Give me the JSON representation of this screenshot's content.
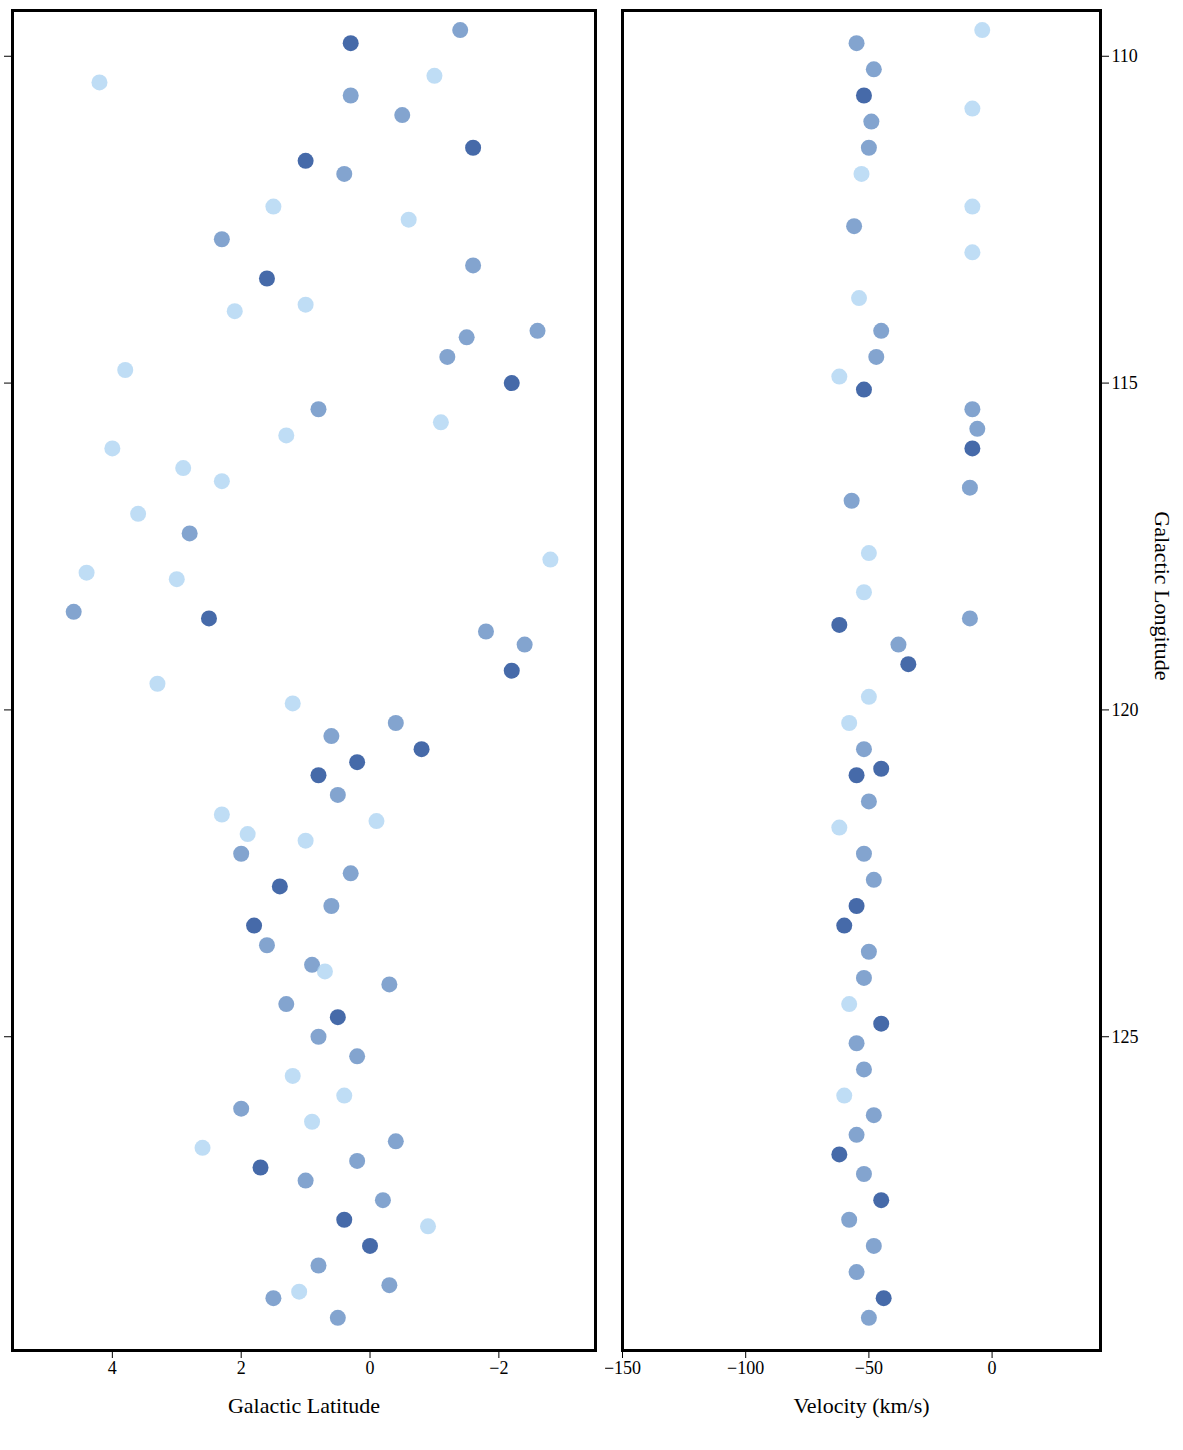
{
  "chart_data": [
    {
      "type": "heatmap",
      "xlabel": "Galactic Latitude",
      "xlim": [
        5.55,
        -3.5
      ],
      "xticks": [
        4,
        2,
        0,
        -2
      ],
      "ylim": [
        129.8,
        109.3
      ],
      "yticks": [
        110,
        115,
        120,
        125
      ],
      "tick_labels": "x",
      "x": [
        0.5,
        1.5,
        -0.3,
        0.8,
        0.0,
        0.4,
        -0.2,
        1.0,
        1.7,
        0.2,
        -0.4,
        0.9,
        2.0,
        0.4,
        1.2,
        0.2,
        0.8,
        0.5,
        1.3,
        -0.3,
        0.9,
        1.6,
        1.8,
        0.6,
        1.4,
        0.3,
        2.0,
        1.0,
        2.3,
        0.5,
        0.8,
        0.2,
        -0.8,
        0.6,
        -0.4,
        1.2,
        -2.2,
        -2.4,
        -1.8,
        2.5,
        4.6,
        3.0,
        -2.8,
        2.8,
        2.3,
        4.0,
        1.3,
        0.8,
        -2.2,
        -1.2,
        -1.5,
        -2.6,
        1.0,
        1.6,
        -1.6,
        2.3,
        1.5,
        0.4,
        1.0,
        -1.6,
        -0.5,
        0.3,
        -1.0,
        0.3,
        -1.4,
        1.1,
        -0.9,
        2.6,
        0.7,
        1.9,
        -0.1,
        3.3,
        4.4,
        3.6,
        2.9,
        -1.1,
        3.8,
        2.1,
        -0.6,
        4.2
      ],
      "y": [
        129.3,
        129.0,
        128.8,
        128.5,
        128.2,
        127.8,
        127.5,
        127.2,
        127.0,
        126.9,
        126.6,
        126.3,
        126.1,
        125.9,
        125.6,
        125.3,
        125.0,
        124.7,
        124.5,
        124.2,
        123.9,
        123.6,
        123.3,
        123.0,
        122.7,
        122.5,
        122.2,
        122.0,
        121.6,
        121.3,
        121.0,
        120.8,
        120.6,
        120.4,
        120.2,
        119.9,
        119.4,
        119.0,
        118.8,
        118.6,
        118.5,
        118.0,
        117.7,
        117.3,
        116.5,
        116.0,
        115.8,
        115.4,
        115.0,
        114.6,
        114.3,
        114.2,
        113.8,
        113.4,
        113.2,
        112.8,
        112.3,
        111.8,
        111.6,
        111.4,
        110.9,
        110.6,
        110.3,
        109.8,
        109.6,
        128.9,
        127.9,
        126.7,
        124.0,
        121.9,
        121.7,
        119.6,
        117.9,
        117.0,
        116.3,
        115.6,
        114.8,
        113.9,
        112.5,
        110.4
      ],
      "intensity": [
        2,
        2,
        2,
        2,
        3,
        3,
        2,
        2,
        3,
        2,
        2,
        1,
        2,
        1,
        1,
        2,
        2,
        3,
        2,
        2,
        2,
        2,
        3,
        2,
        3,
        2,
        2,
        1,
        1,
        2,
        3,
        3,
        3,
        2,
        2,
        1,
        3,
        2,
        2,
        3,
        2,
        1,
        1,
        2,
        1,
        1,
        1,
        2,
        3,
        2,
        2,
        2,
        1,
        3,
        2,
        2,
        1,
        2,
        3,
        3,
        2,
        2,
        1,
        3,
        2,
        1,
        1,
        1,
        1,
        1,
        1,
        1,
        1,
        1,
        1,
        1,
        1,
        1,
        1,
        1
      ]
    },
    {
      "type": "heatmap",
      "xlabel": "Velocity (km/s)",
      "ylabel": "Galactic Longitude",
      "xlim": [
        -150,
        44
      ],
      "xticks": [
        -150,
        -100,
        -50,
        0
      ],
      "ylim": [
        129.8,
        109.3
      ],
      "yticks": [
        110,
        115,
        120,
        125
      ],
      "x": [
        -50,
        -44,
        -55,
        -48,
        -58,
        -45,
        -52,
        -62,
        -55,
        -48,
        -60,
        -52,
        -55,
        -45,
        -58,
        -52,
        -50,
        -60,
        -55,
        -48,
        -52,
        -62,
        -50,
        -55,
        -45,
        -52,
        -58,
        -50,
        -34,
        -38,
        -62,
        -9,
        -52,
        -50,
        -57,
        -9,
        -8,
        -6,
        -8,
        -52,
        -62,
        -47,
        -45,
        -54,
        -8,
        -56,
        -8,
        -53,
        -50,
        -49,
        -52,
        -48,
        -55,
        -4,
        -8
      ],
      "y": [
        129.3,
        129.0,
        128.6,
        128.2,
        127.8,
        127.5,
        127.1,
        126.8,
        126.5,
        126.2,
        125.9,
        125.5,
        125.1,
        124.8,
        124.5,
        124.1,
        123.7,
        123.3,
        123.0,
        122.6,
        122.2,
        121.8,
        121.4,
        121.0,
        120.9,
        120.6,
        120.2,
        119.8,
        119.3,
        119.0,
        118.7,
        118.6,
        118.2,
        117.6,
        116.8,
        116.6,
        116.0,
        115.7,
        115.4,
        115.1,
        114.9,
        114.6,
        114.2,
        113.7,
        113.0,
        112.6,
        112.3,
        111.8,
        111.4,
        111.0,
        110.6,
        110.2,
        109.8,
        109.6,
        110.8
      ],
      "intensity": [
        2,
        3,
        2,
        2,
        2,
        3,
        2,
        3,
        2,
        2,
        1,
        2,
        2,
        3,
        1,
        2,
        2,
        3,
        3,
        2,
        2,
        1,
        2,
        3,
        3,
        2,
        1,
        1,
        3,
        2,
        3,
        2,
        1,
        1,
        2,
        2,
        3,
        2,
        2,
        3,
        1,
        2,
        2,
        1,
        1,
        2,
        1,
        1,
        2,
        2,
        3,
        2,
        2,
        1,
        1
      ]
    }
  ]
}
